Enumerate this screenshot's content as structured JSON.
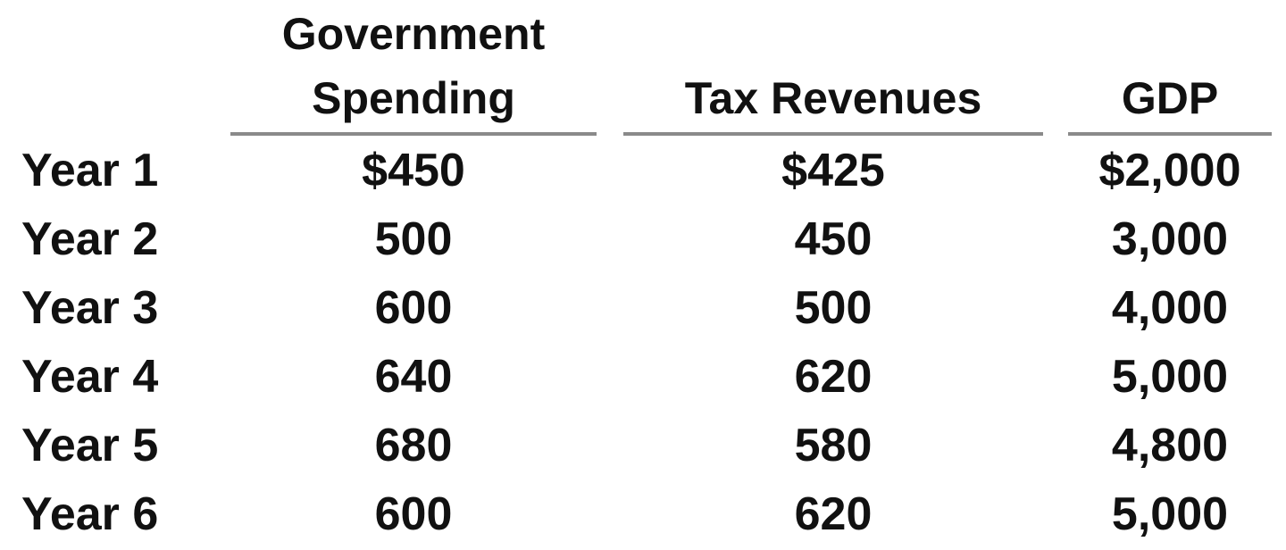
{
  "table": {
    "columns": [
      {
        "key": "gov",
        "line1": "Government",
        "line2": "Spending"
      },
      {
        "key": "tax",
        "line1": "",
        "line2": "Tax Revenues"
      },
      {
        "key": "gdp",
        "line1": "",
        "line2": "GDP"
      }
    ],
    "rows": [
      {
        "label": "Year 1",
        "gov": "$450",
        "tax": "$425",
        "gdp": "$2,000"
      },
      {
        "label": "Year 2",
        "gov": "500",
        "tax": "450",
        "gdp": "3,000"
      },
      {
        "label": "Year 3",
        "gov": "600",
        "tax": "500",
        "gdp": "4,000"
      },
      {
        "label": "Year 4",
        "gov": "640",
        "tax": "620",
        "gdp": "5,000"
      },
      {
        "label": "Year 5",
        "gov": "680",
        "tax": "580",
        "gdp": "4,800"
      },
      {
        "label": "Year 6",
        "gov": "600",
        "tax": "620",
        "gdp": "5,000"
      }
    ]
  }
}
